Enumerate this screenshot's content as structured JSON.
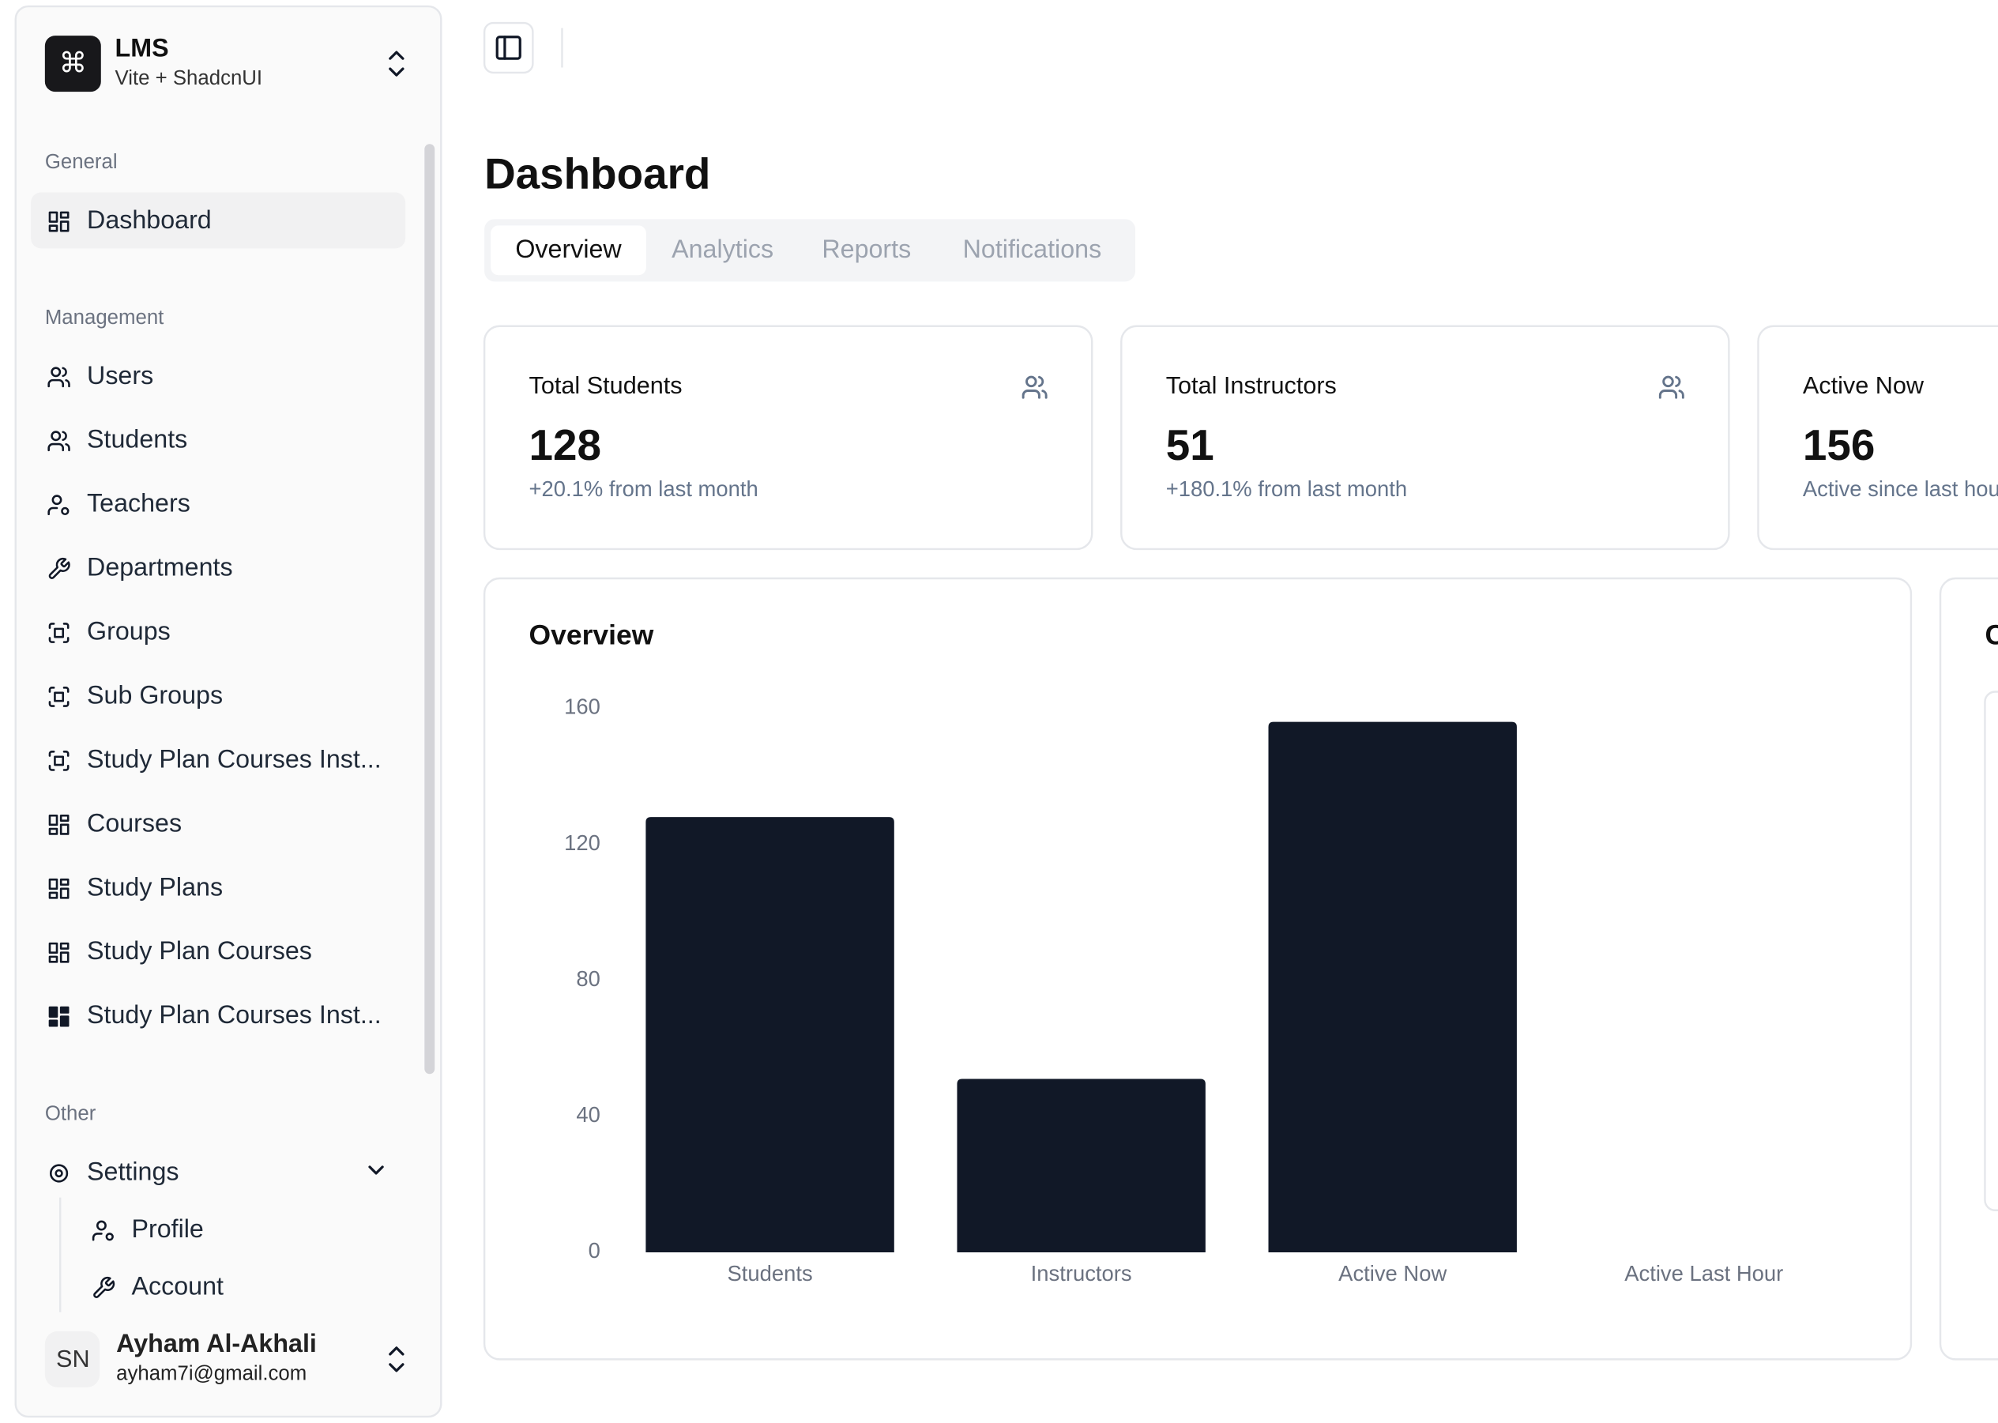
{
  "sidebar": {
    "brand": {
      "logo": "⌘",
      "name": "LMS",
      "subtitle": "Vite + ShadcnUI"
    },
    "groups": [
      {
        "label": "General",
        "items": [
          "Dashboard"
        ]
      },
      {
        "label": "Management",
        "items": [
          "Users",
          "Students",
          "Teachers",
          "Departments",
          "Groups",
          "Sub Groups",
          "Study Plan Courses Inst...",
          "Courses",
          "Study Plans",
          "Study Plan Courses",
          "Study Plan Courses Inst..."
        ]
      },
      {
        "label": "Other",
        "items": [
          "Settings"
        ],
        "subitems": [
          "Profile",
          "Account"
        ]
      }
    ],
    "user": {
      "initials": "SN",
      "name": "Ayham Al-Akhali",
      "email": "ayham7i@gmail.com"
    }
  },
  "page": {
    "title": "Dashboard",
    "tabs": [
      "Overview",
      "Analytics",
      "Reports",
      "Notifications"
    ]
  },
  "cards": [
    {
      "title": "Total Students",
      "value": "128",
      "note": "+20.1% from last month"
    },
    {
      "title": "Total Instructors",
      "value": "51",
      "note": "+180.1% from last month"
    },
    {
      "title": "Active Now",
      "value": "156",
      "note": "Active since last hour"
    }
  ],
  "chart_data": {
    "type": "bar",
    "title": "Overview",
    "categories": [
      "Students",
      "Instructors",
      "Active Now",
      "Active Last Hour"
    ],
    "values": [
      128,
      51,
      156,
      0
    ],
    "color": "#111827",
    "ylim": [
      0,
      160
    ],
    "yticks": [
      0,
      40,
      80,
      120,
      160
    ],
    "grid": false
  },
  "side_card": {
    "title": "C"
  }
}
